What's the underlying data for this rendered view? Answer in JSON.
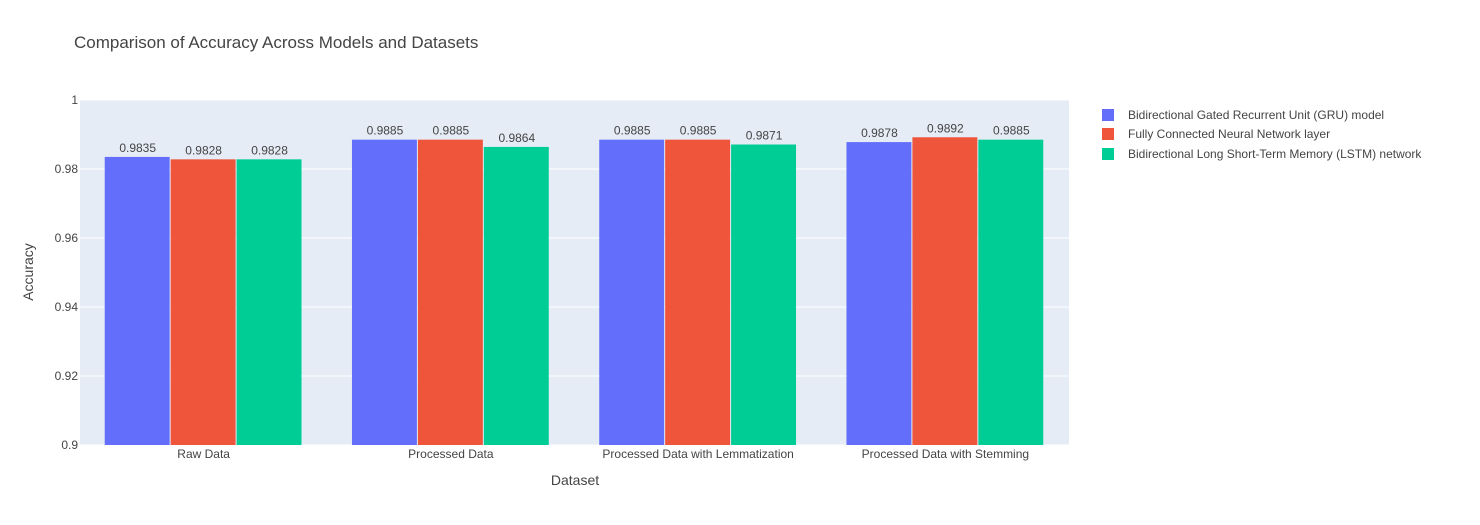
{
  "chart_data": {
    "type": "bar",
    "title": "Comparison of Accuracy Across Models and Datasets",
    "xlabel": "Dataset",
    "ylabel": "Accuracy",
    "ylim": [
      0.9,
      1.0
    ],
    "yticks": [
      "0.9",
      "0.92",
      "0.94",
      "0.96",
      "0.98",
      "1"
    ],
    "yticks_values": [
      0.9,
      0.92,
      0.94,
      0.96,
      0.98,
      1.0
    ],
    "grid": true,
    "legend_position": "top-right",
    "categories": [
      "Raw Data",
      "Processed Data",
      "Processed Data with Lemmatization",
      "Processed Data with Stemming"
    ],
    "series": [
      {
        "name": "Bidirectional Gated Recurrent Unit (GRU) model",
        "color": "#636efa",
        "values": [
          0.9835,
          0.9885,
          0.9885,
          0.9878
        ],
        "labels": [
          "0.9835",
          "0.9885",
          "0.9885",
          "0.9878"
        ]
      },
      {
        "name": "Fully Connected Neural Network layer",
        "color": "#ef553b",
        "values": [
          0.9828,
          0.9885,
          0.9885,
          0.9892
        ],
        "labels": [
          "0.9828",
          "0.9885",
          "0.9885",
          "0.9892"
        ]
      },
      {
        "name": "Bidirectional Long Short-Term Memory (LSTM) network",
        "color": "#00cc96",
        "values": [
          0.9828,
          0.9864,
          0.9871,
          0.9885
        ],
        "labels": [
          "0.9828",
          "0.9864",
          "0.9871",
          "0.9885"
        ]
      }
    ]
  },
  "colors": {
    "plot_background": "#e5ecf6",
    "grid": "#ffffff",
    "text": "#444444"
  }
}
